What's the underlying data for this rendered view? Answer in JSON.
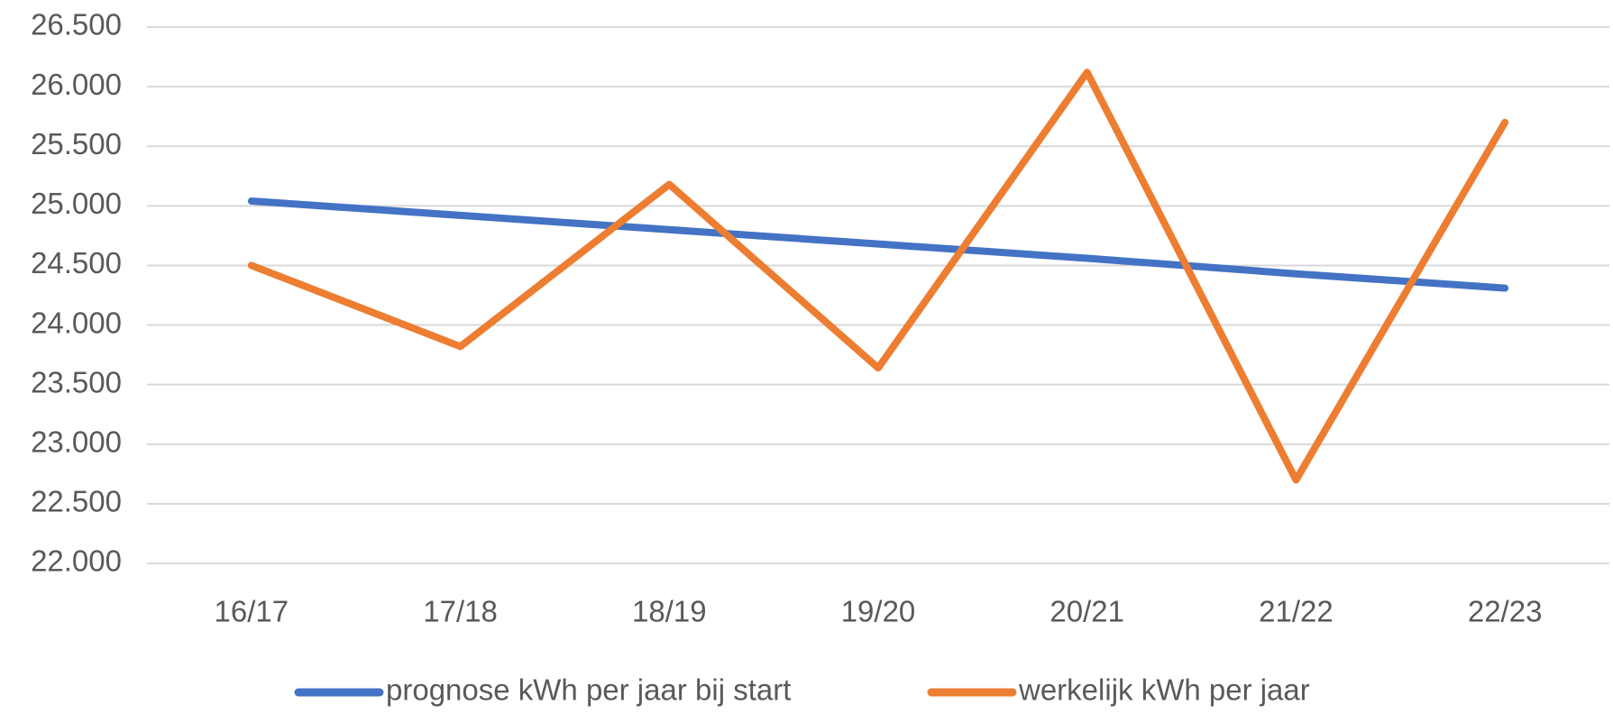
{
  "chart_data": {
    "type": "line",
    "categories": [
      "16/17",
      "17/18",
      "18/19",
      "19/20",
      "20/21",
      "21/22",
      "22/23"
    ],
    "series": [
      {
        "name": "prognose kWh per jaar bij start",
        "color": "#4472c4",
        "values": [
          25040,
          24920,
          24800,
          24680,
          24560,
          24430,
          24310
        ]
      },
      {
        "name": "werkelijk kWh per jaar",
        "color": "#ed7d31",
        "values": [
          24500,
          23820,
          25180,
          23640,
          26120,
          22700,
          25700
        ]
      }
    ],
    "ylim": [
      22000,
      26500
    ],
    "yticks": [
      {
        "value": 22000,
        "label": "22.000"
      },
      {
        "value": 22500,
        "label": "22.500"
      },
      {
        "value": 23000,
        "label": "23.000"
      },
      {
        "value": 23500,
        "label": "23.500"
      },
      {
        "value": 24000,
        "label": "24.000"
      },
      {
        "value": 24500,
        "label": "24.500"
      },
      {
        "value": 25000,
        "label": "25.000"
      },
      {
        "value": 25500,
        "label": "25.500"
      },
      {
        "value": 26000,
        "label": "26.000"
      },
      {
        "value": 26500,
        "label": "26.500"
      }
    ],
    "grid": true,
    "legend": "bottom"
  }
}
